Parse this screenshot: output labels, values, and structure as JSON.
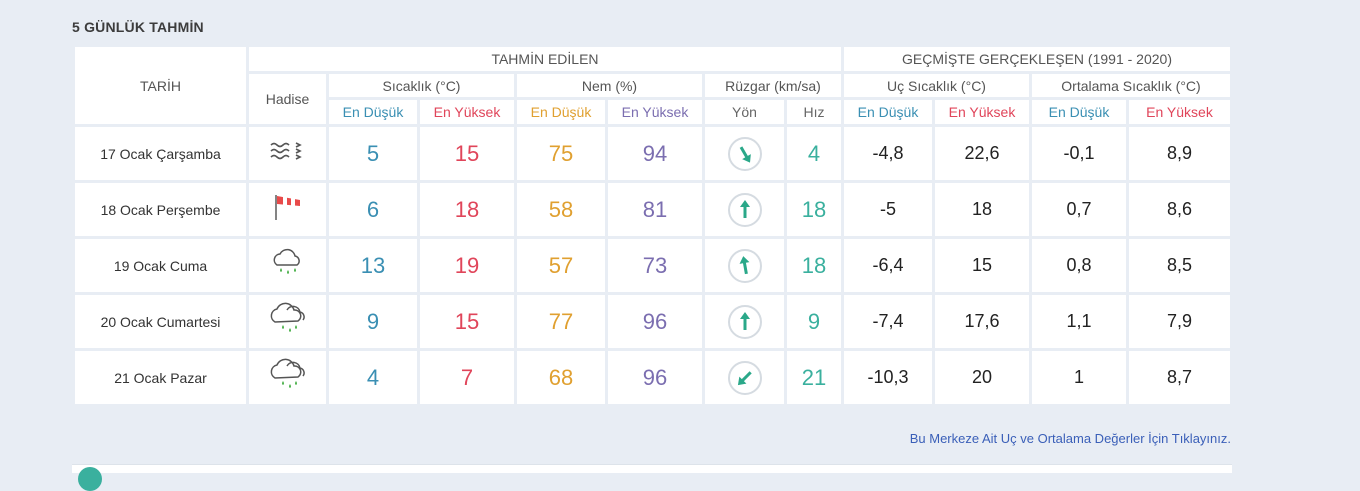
{
  "section_title": "5 GÜNLÜK TAHMİN",
  "headers": {
    "date": "TARİH",
    "event": "Hadise",
    "forecast_group": "TAHMİN EDİLEN",
    "history_group": "GEÇMİŞTE GERÇEKLEŞEN (1991 - 2020)",
    "temperature": "Sıcaklık (°C)",
    "humidity": "Nem (%)",
    "wind": "Rüzgar (km/sa)",
    "extreme_temp": "Uç Sıcaklık (°C)",
    "avg_temp": "Ortalama Sıcaklık (°C)",
    "low": "En Düşük",
    "high": "En Yüksek",
    "direction": "Yön",
    "speed": "Hız"
  },
  "rows": [
    {
      "date": "17 Ocak Çarşamba",
      "icon": "fog-icon",
      "t_low": "5",
      "t_high": "15",
      "h_low": "75",
      "h_high": "94",
      "wind_dir_deg": 150,
      "wind_speed": "4",
      "ext_low": "-4,8",
      "ext_high": "22,6",
      "avg_low": "-0,1",
      "avg_high": "8,9"
    },
    {
      "date": "18 Ocak Perşembe",
      "icon": "windsock-icon",
      "t_low": "6",
      "t_high": "18",
      "h_low": "58",
      "h_high": "81",
      "wind_dir_deg": 0,
      "wind_speed": "18",
      "ext_low": "-5",
      "ext_high": "18",
      "avg_low": "0,7",
      "avg_high": "8,6"
    },
    {
      "date": "19 Ocak Cuma",
      "icon": "rain-cloud-icon",
      "t_low": "13",
      "t_high": "19",
      "h_low": "57",
      "h_high": "73",
      "wind_dir_deg": 350,
      "wind_speed": "18",
      "ext_low": "-6,4",
      "ext_high": "15",
      "avg_low": "0,8",
      "avg_high": "8,5"
    },
    {
      "date": "20 Ocak Cumartesi",
      "icon": "heavy-rain-cloud-icon",
      "t_low": "9",
      "t_high": "15",
      "h_low": "77",
      "h_high": "96",
      "wind_dir_deg": 0,
      "wind_speed": "9",
      "ext_low": "-7,4",
      "ext_high": "17,6",
      "avg_low": "1,1",
      "avg_high": "7,9"
    },
    {
      "date": "21 Ocak Pazar",
      "icon": "heavy-rain-cloud-icon",
      "t_low": "4",
      "t_high": "7",
      "h_low": "68",
      "h_high": "96",
      "wind_dir_deg": 225,
      "wind_speed": "21",
      "ext_low": "-10,3",
      "ext_high": "20",
      "avg_low": "1",
      "avg_high": "8,7"
    }
  ],
  "footer_link": "Bu Merkeze Ait Uç ve Ortalama Değerler İçin Tıklayınız.",
  "colors": {
    "low": "#3a8fb3",
    "high": "#e0455a",
    "humidity_low": "#e0a030",
    "humidity_high": "#7b6eb0",
    "wind": "#3ab09e"
  }
}
